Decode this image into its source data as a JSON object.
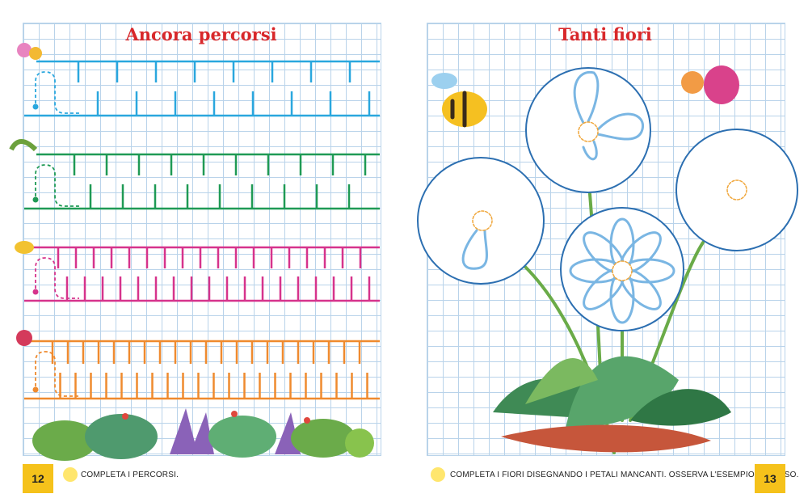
{
  "left_page": {
    "title": "Ancora percorsi",
    "instruction": "COMPLETA I PERCORSI.",
    "page_number": 12
  },
  "right_page": {
    "title": "Tanti fiori",
    "instruction": "COMPLETA I FIORI DISEGNANDO I PETALI MANCANTI. OSSERVA L'ESEMPIO IN BASSO.",
    "page_number": 13
  }
}
